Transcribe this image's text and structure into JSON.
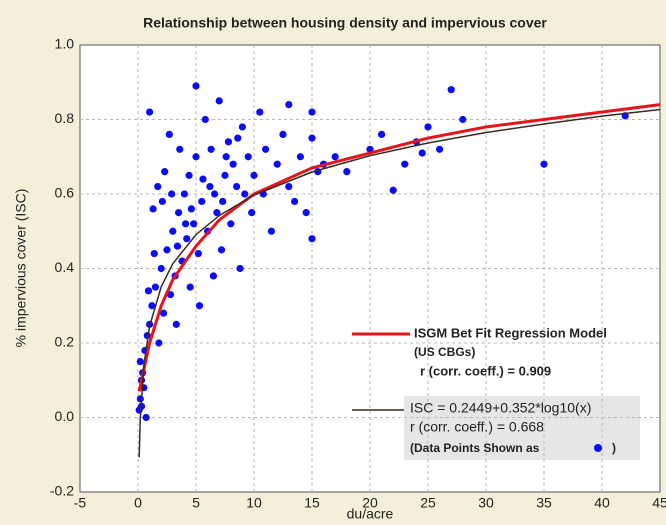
{
  "chart_data": {
    "type": "scatter",
    "title": "Relationship between housing density and impervious cover",
    "xlabel": "du/acre",
    "ylabel": "% impervious cover (ISC)",
    "xlim": [
      -5,
      45
    ],
    "ylim": [
      -0.2,
      1.0
    ],
    "xticks": [
      -5,
      0,
      5,
      10,
      15,
      20,
      25,
      30,
      35,
      40,
      45
    ],
    "yticks": [
      -0.2,
      {
        "value": 0,
        "label": "0.0"
      },
      0.2,
      0.4,
      0.6,
      0.8,
      {
        "value": 1,
        "label": "1.0"
      }
    ],
    "grid": true,
    "points": {
      "color": "#0a0aff",
      "x": [
        0.1,
        0.2,
        0.3,
        0.2,
        0.5,
        0.4,
        0.6,
        0.8,
        0.3,
        0.7,
        1.0,
        1.2,
        1.0,
        1.5,
        1.3,
        1.8,
        2.0,
        2.2,
        1.7,
        2.5,
        2.3,
        2.8,
        3.0,
        3.2,
        2.7,
        3.5,
        3.3,
        3.8,
        4.0,
        4.2,
        3.6,
        4.5,
        4.4,
        4.8,
        5.0,
        5.2,
        5.0,
        5.5,
        5.3,
        5.8,
        6.0,
        6.2,
        6.5,
        6.3,
        6.8,
        7.0,
        7.2,
        7.5,
        7.3,
        7.8,
        8.0,
        8.2,
        8.5,
        8.8,
        9.0,
        9.2,
        9.5,
        9.8,
        10,
        10.5,
        10.8,
        11,
        11.5,
        12,
        12.5,
        13,
        13,
        13.5,
        14,
        14.5,
        15,
        15,
        15,
        15.5,
        16,
        17,
        18,
        20,
        21,
        22,
        23,
        24,
        24.5,
        25,
        26,
        27,
        28,
        35,
        42,
        2.1,
        3.4,
        4.6,
        5.6,
        6.6,
        1.4,
        0.9,
        2.9,
        4.1,
        7.6,
        8.6
      ],
      "y": [
        0.02,
        0.05,
        0.1,
        0.15,
        0.08,
        0.12,
        0.18,
        0.22,
        0.03,
        0.0,
        0.25,
        0.3,
        0.82,
        0.35,
        0.56,
        0.2,
        0.4,
        0.28,
        0.62,
        0.45,
        0.66,
        0.33,
        0.5,
        0.38,
        0.76,
        0.55,
        0.25,
        0.42,
        0.6,
        0.48,
        0.72,
        0.35,
        0.65,
        0.52,
        0.89,
        0.44,
        0.7,
        0.58,
        0.3,
        0.8,
        0.5,
        0.62,
        0.38,
        0.72,
        0.55,
        0.85,
        0.45,
        0.65,
        0.58,
        0.74,
        0.52,
        0.68,
        0.62,
        0.4,
        0.78,
        0.6,
        0.7,
        0.55,
        0.65,
        0.82,
        0.6,
        0.72,
        0.5,
        0.68,
        0.76,
        0.84,
        0.62,
        0.58,
        0.7,
        0.55,
        0.82,
        0.75,
        0.48,
        0.66,
        0.68,
        0.7,
        0.66,
        0.72,
        0.76,
        0.61,
        0.68,
        0.74,
        0.71,
        0.78,
        0.72,
        0.88,
        0.8,
        0.68,
        0.81,
        0.58,
        0.46,
        0.56,
        0.64,
        0.6,
        0.44,
        0.34,
        0.6,
        0.52,
        0.7,
        0.75
      ]
    },
    "series": [
      {
        "name": "ISGM Bet Fit Regression Model",
        "color": "#e8141b",
        "x": [
          0.1,
          1,
          2,
          3,
          5,
          7,
          10,
          15,
          20,
          25,
          30,
          35,
          40,
          45
        ],
        "values": [
          0.07,
          0.2,
          0.3,
          0.37,
          0.46,
          0.53,
          0.6,
          0.67,
          0.71,
          0.75,
          0.78,
          0.8,
          0.82,
          0.84
        ]
      },
      {
        "name": "ISC = 0.2449+0.352*log10(x)",
        "color": "#3a2a20",
        "x": [
          0.1,
          0.2,
          0.5,
          1,
          2,
          3,
          5,
          7,
          10,
          15,
          20,
          25,
          30,
          35,
          40,
          45
        ],
        "values": [
          -0.107,
          -0.001,
          0.139,
          0.245,
          0.351,
          0.413,
          0.491,
          0.542,
          0.597,
          0.659,
          0.703,
          0.737,
          0.765,
          0.788,
          0.809,
          0.827
        ]
      }
    ],
    "annotations": [
      "(US CBGs)",
      "r (corr. coeff.) = 0.909",
      "r (corr. coeff.) = 0.668",
      "(Data Points Shown as",
      ")"
    ]
  }
}
